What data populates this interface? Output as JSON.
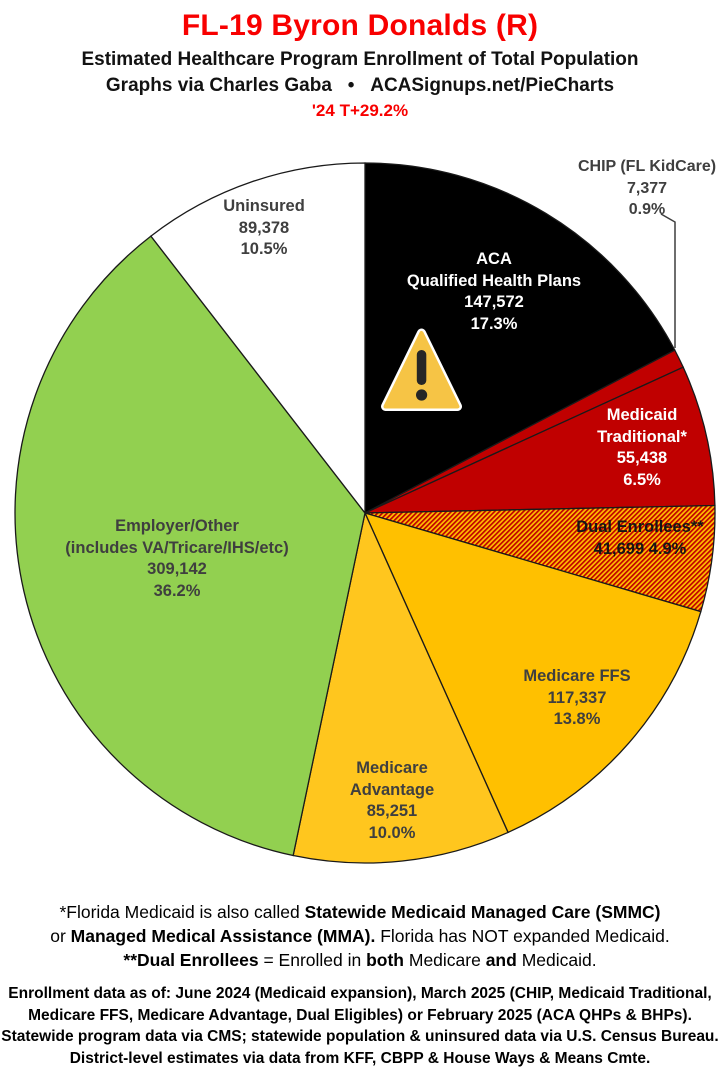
{
  "header": {
    "title": "FL-19 Byron Donalds (R)",
    "title_color": "#F80000",
    "subtitle1": "Estimated Healthcare Program Enrollment of Total Population",
    "subtitle2": "Graphs via Charles Gaba   •   ACASignups.net/PieCharts",
    "note": "'24 T+29.2%",
    "note_color": "#F80000"
  },
  "chart_data": {
    "type": "pie",
    "title": "Estimated Healthcare Program Enrollment of Total Population",
    "start_angle_deg": -90,
    "direction": "clockwise",
    "stroke_color": "#1a1a1a",
    "segments": [
      {
        "id": "aca-qhp",
        "label": "ACA Qualified Health Plans",
        "label_lines": [
          "ACA",
          "Qualified Health Plans"
        ],
        "value": 147572,
        "value_display": "147,572",
        "pct": "17.3%",
        "color": "#000000"
      },
      {
        "id": "chip",
        "label": "CHIP (FL KidCare)",
        "label_lines": [
          "CHIP (FL KidCare)"
        ],
        "value": 7377,
        "value_display": "7,377",
        "pct": "0.9%",
        "color": "#C00000"
      },
      {
        "id": "medicaid-traditional",
        "label": "Medicaid Traditional*",
        "label_lines": [
          "Medicaid",
          "Traditional*"
        ],
        "value": 55438,
        "value_display": "55,438",
        "pct": "6.5%",
        "color": "#C00000"
      },
      {
        "id": "dual-enrollees",
        "label": "Dual Enrollees**",
        "label_lines": [
          "Dual Enrollees**"
        ],
        "value": 41699,
        "value_display": "41,699",
        "pct": "4.9%",
        "color": "#FFC000",
        "pattern": "diagonal-hatch",
        "hatch_color": "#C00000"
      },
      {
        "id": "medicare-ffs",
        "label": "Medicare FFS",
        "label_lines": [
          "Medicare FFS"
        ],
        "value": 117337,
        "value_display": "117,337",
        "pct": "13.8%",
        "color": "#FFC000"
      },
      {
        "id": "medicare-advantage",
        "label": "Medicare Advantage",
        "label_lines": [
          "Medicare",
          "Advantage"
        ],
        "value": 85251,
        "value_display": "85,251",
        "pct": "10.0%",
        "color": "#FFC61E"
      },
      {
        "id": "employer-other",
        "label": "Employer/Other (includes VA/Tricare/IHS/etc)",
        "label_lines": [
          "Employer/Other",
          "(includes VA/Tricare/IHS/etc)"
        ],
        "value": 309142,
        "value_display": "309,142",
        "pct": "36.2%",
        "color": "#92D050"
      },
      {
        "id": "uninsured",
        "label": "Uninsured",
        "label_lines": [
          "Uninsured"
        ],
        "value": 89378,
        "value_display": "89,378",
        "pct": "10.5%",
        "color": "#FFFFFF"
      }
    ]
  },
  "footnote": {
    "l1_a": "*Florida Medicaid is also called ",
    "l1_b": "Statewide Medicaid Managed Care (SMMC)",
    "l2_a": "or ",
    "l2_b": "Managed Medical Assistance (MMA).",
    "l2_c": " Florida has NOT expanded Medicaid.",
    "l3_a": "**Dual Enrollees",
    "l3_b": " = Enrolled in ",
    "l3_c": "both",
    "l3_d": " Medicare ",
    "l3_e": "and",
    "l3_f": " Medicaid."
  },
  "source": {
    "line1": "Enrollment data as of: June 2024 (Medicaid expansion), March 2025 (CHIP, Medicaid Traditional,",
    "line2": "Medicare FFS, Medicare Advantage, Dual Eligibles) or February 2025 (ACA QHPs & BHPs).",
    "line3": "Statewide program data via CMS; statewide population & uninsured data via U.S. Census Bureau.",
    "line4": "District-level estimates via data from KFF, CBPP & House Ways & Means Cmte."
  }
}
